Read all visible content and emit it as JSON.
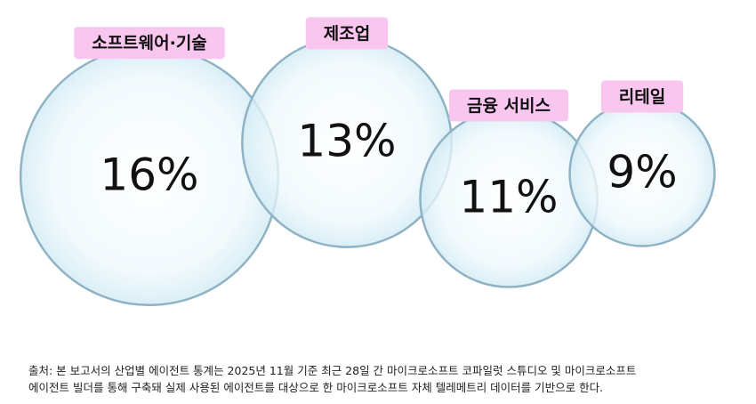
{
  "chart_data": {
    "type": "bubble",
    "categories": [
      "소프트웨어·기술",
      "제조업",
      "금융 서비스",
      "리테일"
    ],
    "values": [
      16,
      13,
      11,
      9
    ],
    "value_labels": [
      "16%",
      "13%",
      "11%",
      "9%"
    ],
    "color": "#e8f6fb",
    "label_color": "#f9c6f0",
    "note": [
      "출처: 본 보고서의 산업별 에이전트 통계는 2025년 11월 기준 최근 28일 간 마이크로소프트 코파일럿 스튜디오 및 마이크로소프트",
      "에이전트 빌더를 통해 구축돼 실제 사용된 에이전트를 대상으로 한 마이크로소프트 자체 텔레메트리 데이터를 기반으로 한다."
    ]
  }
}
